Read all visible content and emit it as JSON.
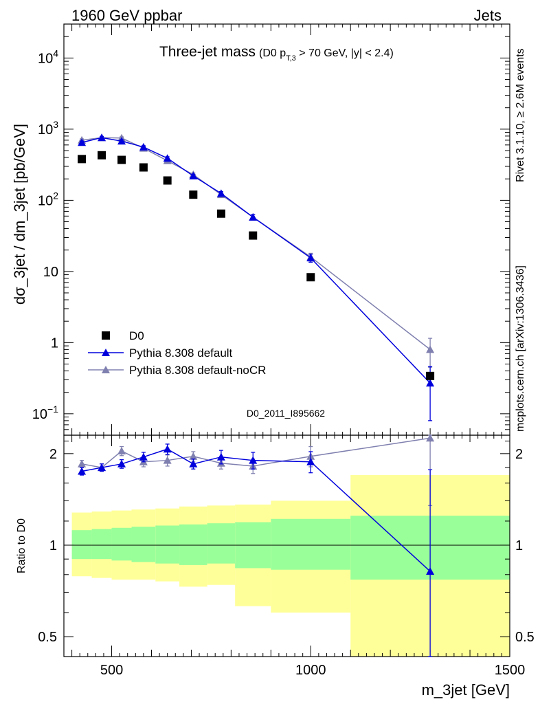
{
  "header": {
    "left": "1960 GeV ppbar",
    "right": "Jets"
  },
  "title": {
    "main": "Three-jet mass",
    "cut_prefix": "(D0 p",
    "cut_sub": "T,3",
    "cut_suffix": " > 70 GeV, |y| < 2.4)"
  },
  "side_labels": {
    "rivet": "Rivet 3.1.10, ≥ 2.6M events",
    "mcplots": "mcplots.cern.ch [arXiv:1306.3436]"
  },
  "watermark": "D0_2011_I895662",
  "chart_data": [
    {
      "type": "scatter",
      "panel": "main",
      "ylabel": "dσ_3jet / dm_3jet [pb/GeV]",
      "yscale": "log",
      "ylim": [
        0.05,
        30000
      ],
      "xlim": [
        380,
        1500
      ],
      "ytick_labels": [
        "10^-1",
        "1",
        "10",
        "10^2",
        "10^3",
        "10^4"
      ],
      "legend_position": "bottom-left",
      "series": [
        {
          "name": "D0",
          "color": "#000000",
          "marker": "square",
          "x": [
            425,
            475,
            525,
            580,
            640,
            705,
            775,
            855,
            1000,
            1300
          ],
          "y": [
            380,
            430,
            370,
            290,
            190,
            120,
            65,
            32,
            8.3,
            0.34
          ]
        },
        {
          "name": "Pythia 8.308 default",
          "color": "#0000dd",
          "marker": "triangle",
          "line": true,
          "x": [
            425,
            475,
            525,
            580,
            640,
            705,
            775,
            855,
            1000,
            1300
          ],
          "y": [
            650,
            760,
            680,
            560,
            390,
            220,
            125,
            58,
            15.5,
            0.27
          ],
          "err": [
            30,
            30,
            30,
            25,
            20,
            12,
            8,
            5,
            2,
            0.19
          ]
        },
        {
          "name": "Pythia 8.308 default-noCR",
          "color": "#8080b0",
          "marker": "triangle",
          "line": true,
          "x": [
            425,
            475,
            525,
            580,
            640,
            705,
            775,
            855,
            1000,
            1300
          ],
          "y": [
            700,
            760,
            750,
            540,
            360,
            230,
            120,
            58,
            16,
            0.8
          ],
          "err": [
            30,
            30,
            30,
            25,
            20,
            12,
            8,
            5,
            2,
            0.35
          ]
        }
      ]
    },
    {
      "type": "line",
      "panel": "ratio",
      "xlabel": "m_3jet [GeV]",
      "ylabel": "Ratio to D0",
      "yscale": "log",
      "ylim": [
        0.43,
        2.3
      ],
      "xlim": [
        380,
        1500
      ],
      "xtick_labels": [
        "500",
        "1000",
        "1500"
      ],
      "ytick_labels": [
        "0.5",
        "1",
        "2"
      ],
      "reference_line": 1,
      "bands": {
        "bin_edges": [
          400,
          450,
          500,
          550,
          610,
          670,
          740,
          810,
          900,
          1100,
          1500
        ],
        "green_lo": [
          0.9,
          0.9,
          0.89,
          0.88,
          0.87,
          0.86,
          0.87,
          0.84,
          0.83,
          0.77
        ],
        "green_hi": [
          1.12,
          1.13,
          1.14,
          1.15,
          1.16,
          1.17,
          1.18,
          1.19,
          1.22,
          1.25
        ],
        "yellow_lo": [
          0.79,
          0.78,
          0.77,
          0.77,
          0.76,
          0.73,
          0.74,
          0.63,
          0.6,
          0.42
        ],
        "yellow_hi": [
          1.28,
          1.29,
          1.3,
          1.31,
          1.32,
          1.34,
          1.35,
          1.36,
          1.4,
          1.7
        ]
      },
      "series": [
        {
          "name": "Pythia 8.308 default",
          "color": "#0000dd",
          "x": [
            425,
            475,
            525,
            580,
            640,
            705,
            775,
            855,
            1000,
            1300
          ],
          "y": [
            1.75,
            1.8,
            1.85,
            1.95,
            2.07,
            1.85,
            1.95,
            1.9,
            1.88,
            0.82
          ],
          "err": [
            0.05,
            0.05,
            0.06,
            0.07,
            0.08,
            0.07,
            0.1,
            0.12,
            0.15,
            0.95
          ]
        },
        {
          "name": "Pythia 8.308 default-noCR",
          "color": "#8080b0",
          "x": [
            425,
            475,
            525,
            580,
            640,
            705,
            775,
            855,
            1000,
            1300
          ],
          "y": [
            1.85,
            1.8,
            2.04,
            1.88,
            1.9,
            1.96,
            1.86,
            1.82,
            1.96,
            2.25
          ],
          "err": [
            0.05,
            0.05,
            0.07,
            0.07,
            0.08,
            0.07,
            0.08,
            0.1,
            0.15,
            0.9
          ]
        }
      ]
    }
  ]
}
